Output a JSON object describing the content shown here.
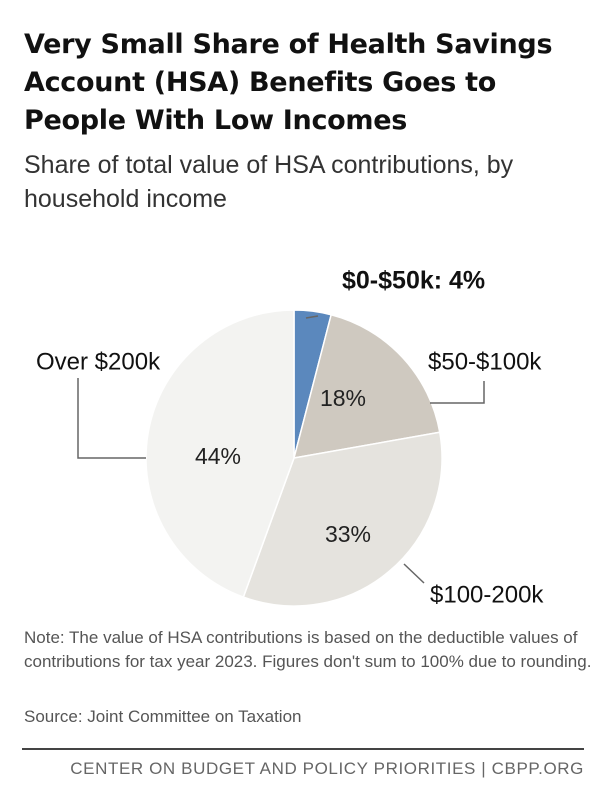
{
  "header": {
    "title": "Very Small Share of Health Savings Account (HSA) Benefits Goes to People With Low Incomes",
    "subtitle": "Share of total value of HSA contributions, by household income"
  },
  "chart_data": {
    "type": "pie",
    "title": "Very Small Share of Health Savings Account (HSA) Benefits Goes to People With Low Incomes",
    "subtitle": "Share of total value of HSA contributions, by household income",
    "start_angle_deg": 0,
    "direction": "clockwise",
    "slices": [
      {
        "label": "$0-$50k",
        "value": 4,
        "value_label": "4%",
        "callout": "$0-$50k: 4%",
        "color": "#5b88bd",
        "highlight": true
      },
      {
        "label": "$50-$100k",
        "value": 18,
        "value_label": "18%",
        "color": "#cfc9c0"
      },
      {
        "label": "$100-200k",
        "value": 33,
        "value_label": "33%",
        "color": "#e5e3de"
      },
      {
        "label": "Over $200k",
        "value": 44,
        "value_label": "44%",
        "color": "#f3f3f1"
      }
    ]
  },
  "notes": {
    "note": "Note: The value of HSA contributions is based on the deductible values of contributions for tax year 2023. Figures don't sum to 100% due to rounding.",
    "source": "Source: Joint Committee on Taxation"
  },
  "footer": {
    "credit": "CENTER ON BUDGET AND POLICY PRIORITIES | CBPP.ORG"
  }
}
